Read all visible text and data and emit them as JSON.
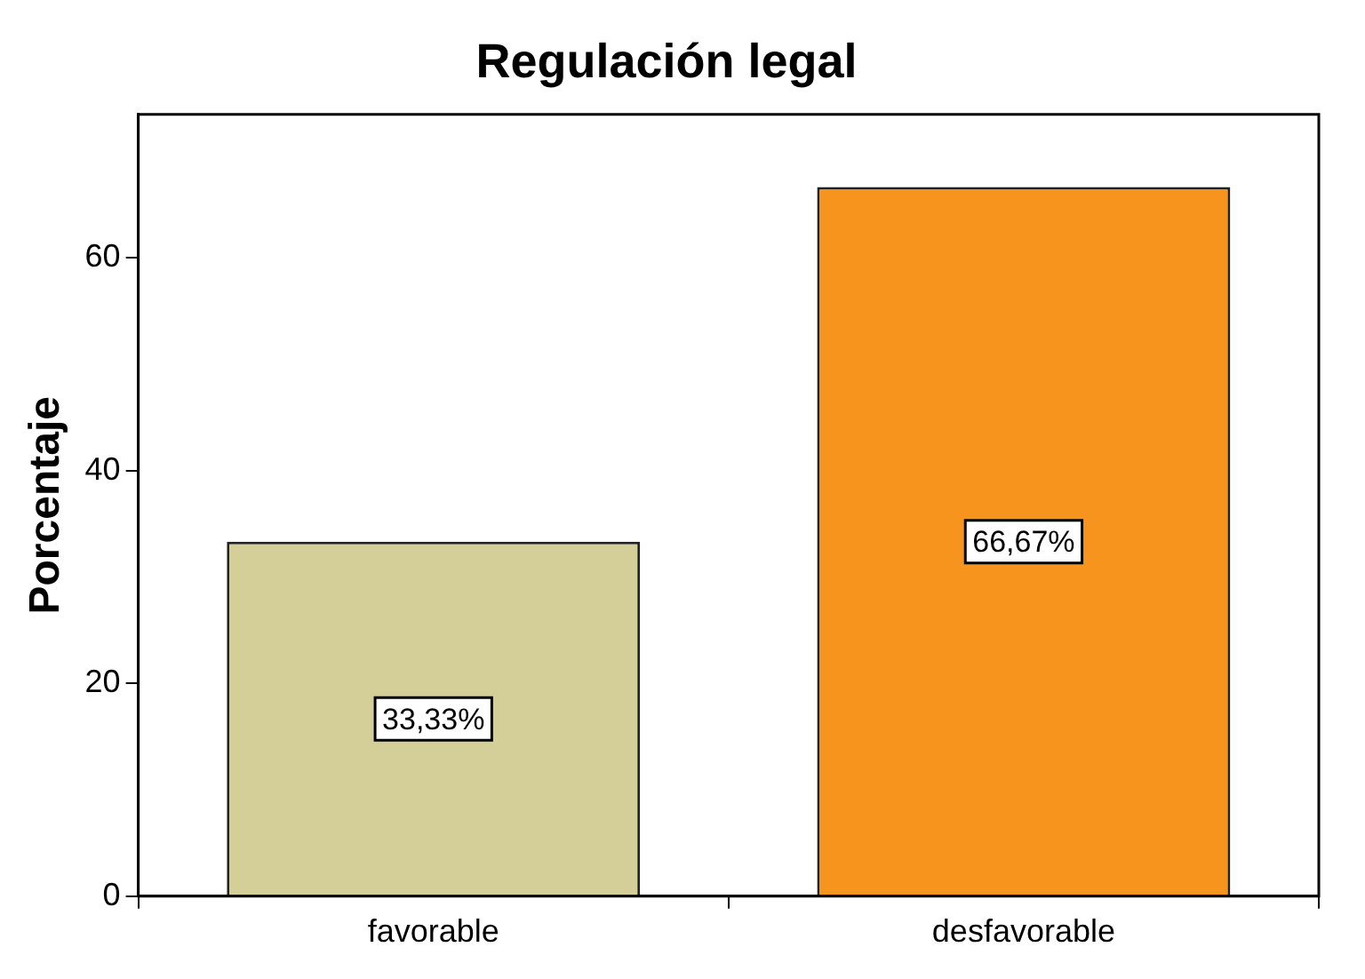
{
  "chart_data": {
    "type": "bar",
    "title": "Regulación legal",
    "ylabel": "Porcentaje",
    "categories": [
      "favorable",
      "desfavorable"
    ],
    "values": [
      33.33,
      66.67
    ],
    "colors": [
      "#d4cf98",
      "#f7941d"
    ],
    "value_labels": [
      "33,33%",
      "66,67%"
    ],
    "ylim": [
      0,
      73.5
    ],
    "yticks": [
      0,
      20,
      40,
      60
    ],
    "grid": false,
    "legend": false
  }
}
